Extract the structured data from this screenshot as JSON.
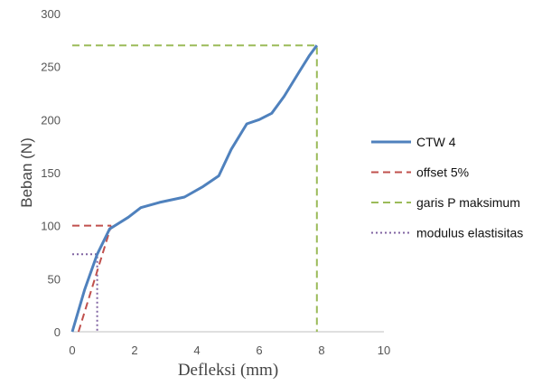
{
  "chart_data": {
    "type": "line",
    "xlabel": "Defleksi (mm)",
    "ylabel": "Beban (N)",
    "xlim": [
      0,
      10
    ],
    "ylim": [
      0,
      300
    ],
    "xticks": [
      0,
      2,
      4,
      6,
      8,
      10
    ],
    "yticks": [
      0,
      50,
      100,
      150,
      200,
      250,
      300
    ],
    "grid": false,
    "legend_position": "right",
    "series": [
      {
        "name": "CTW 4",
        "color": "#4f81bd",
        "style": "solid",
        "points": [
          [
            0,
            0
          ],
          [
            0.4,
            40
          ],
          [
            0.8,
            73
          ],
          [
            1.2,
            97
          ],
          [
            1.8,
            108
          ],
          [
            2.2,
            117
          ],
          [
            2.8,
            122
          ],
          [
            3.6,
            127
          ],
          [
            4.2,
            137
          ],
          [
            4.7,
            147
          ],
          [
            5.1,
            172
          ],
          [
            5.6,
            196
          ],
          [
            6.0,
            200
          ],
          [
            6.4,
            206
          ],
          [
            6.8,
            222
          ],
          [
            7.3,
            246
          ],
          [
            7.6,
            260
          ],
          [
            7.85,
            270
          ]
        ]
      },
      {
        "name": "offset 5%",
        "color": "#c0504d",
        "style": "dashed",
        "points": [
          [
            0.2,
            0
          ],
          [
            1.25,
            100
          ]
        ],
        "hline": {
          "y": 100,
          "x": [
            0,
            1.25
          ]
        }
      },
      {
        "name": "garis P maksimum",
        "color": "#9bbb59",
        "style": "dashed",
        "points": [
          [
            0,
            270
          ],
          [
            7.85,
            270
          ],
          [
            7.85,
            0
          ]
        ]
      },
      {
        "name": "modulus elastisitas",
        "color": "#8064a2",
        "style": "dotted",
        "points": [
          [
            0,
            73
          ],
          [
            0.8,
            73
          ],
          [
            0.8,
            0
          ]
        ]
      }
    ]
  },
  "legend_labels": [
    "CTW 4",
    "offset 5%",
    "garis P maksimum",
    "modulus elastisitas"
  ]
}
